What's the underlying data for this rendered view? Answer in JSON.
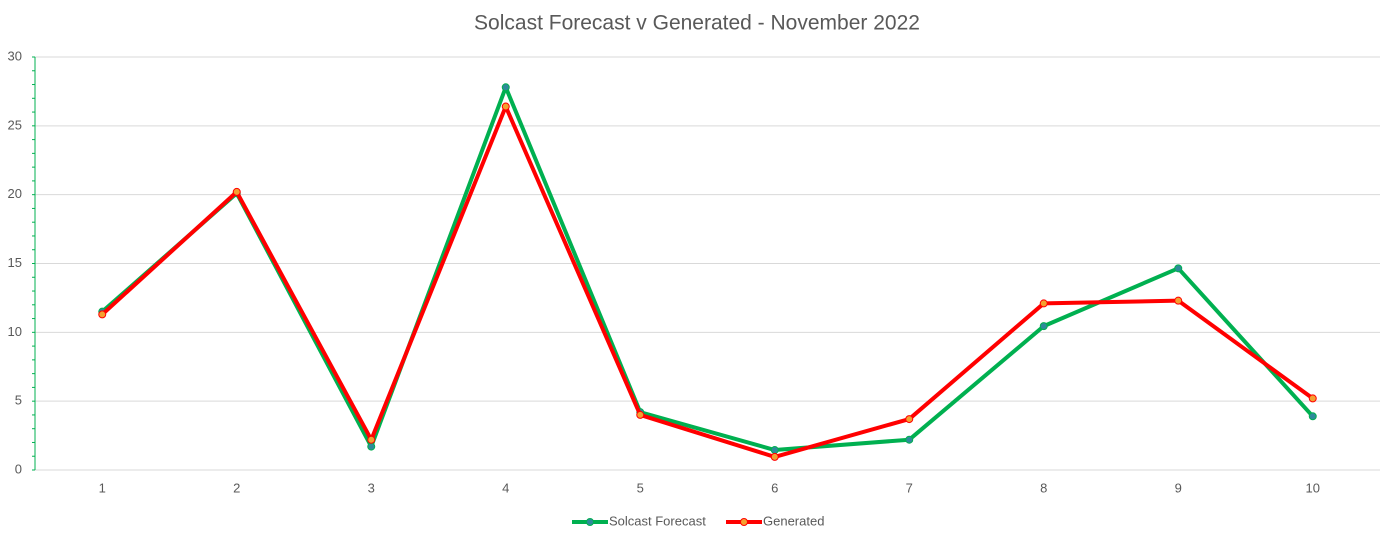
{
  "chart_data": {
    "type": "line",
    "title": "Solcast Forecast v Generated - November 2022",
    "categories": [
      "1",
      "2",
      "3",
      "4",
      "5",
      "6",
      "7",
      "8",
      "9",
      "10"
    ],
    "series": [
      {
        "name": "Solcast Forecast",
        "color": "#00b050",
        "marker_color": "#2e8b9a",
        "values": [
          11.5,
          20.1,
          1.7,
          27.8,
          4.2,
          1.45,
          2.2,
          10.45,
          14.65,
          3.9
        ]
      },
      {
        "name": "Generated",
        "color": "#ff0000",
        "marker_color": "#f4a030",
        "values": [
          11.3,
          20.2,
          2.2,
          26.4,
          4.0,
          0.95,
          3.7,
          12.1,
          12.3,
          5.2
        ]
      }
    ],
    "ylim": [
      0,
      30
    ],
    "yticks": [
      0,
      5,
      10,
      15,
      20,
      25,
      30
    ],
    "grid": true,
    "legend": "bottom"
  }
}
